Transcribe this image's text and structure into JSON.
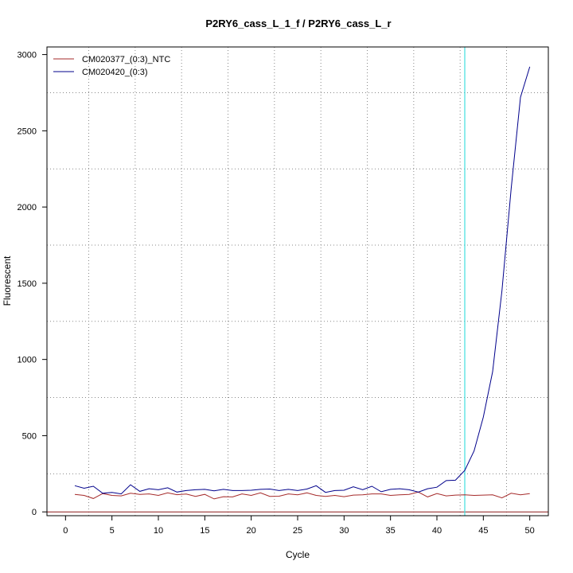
{
  "chart_data": {
    "type": "line",
    "title": "P2RY6_cass_L_1_f / P2RY6_cass_L_r",
    "xlabel": "Cycle",
    "ylabel": "Fluorescent",
    "xlim": [
      -2,
      52
    ],
    "ylim": [
      -25,
      3050
    ],
    "x_ticks": [
      0,
      5,
      10,
      15,
      20,
      25,
      30,
      35,
      40,
      45,
      50
    ],
    "y_ticks": [
      0,
      500,
      1000,
      1500,
      2000,
      2500,
      3000
    ],
    "x_grid": [
      2.5,
      7.5,
      12.5,
      17.5,
      22.5,
      27.5,
      32.5,
      37.5,
      42.5,
      47.5
    ],
    "y_grid": [
      250,
      750,
      1250,
      1750,
      2250,
      2750
    ],
    "grid": true,
    "legend_position": "top-left",
    "threshold_cycle": 43,
    "threshold_color": "#40e0e0",
    "baseline_value": 0,
    "baseline_color": "#8b1a1a",
    "x": [
      1,
      2,
      3,
      4,
      5,
      6,
      7,
      8,
      9,
      10,
      11,
      12,
      13,
      14,
      15,
      16,
      17,
      18,
      19,
      20,
      21,
      22,
      23,
      24,
      25,
      26,
      27,
      28,
      29,
      30,
      31,
      32,
      33,
      34,
      35,
      36,
      37,
      38,
      39,
      40,
      41,
      42,
      43,
      44,
      45,
      46,
      47,
      48,
      49,
      50
    ],
    "series": [
      {
        "name": "CM020377_(0:3)_NTC",
        "color": "#a52a2a",
        "values": [
          115,
          108,
          88,
          120,
          108,
          105,
          122,
          115,
          118,
          108,
          125,
          113,
          117,
          102,
          115,
          85,
          100,
          98,
          118,
          108,
          125,
          102,
          103,
          118,
          112,
          125,
          108,
          102,
          108,
          100,
          110,
          112,
          118,
          118,
          108,
          112,
          115,
          130,
          98,
          120,
          105,
          110,
          112,
          108,
          110,
          112,
          92,
          122,
          112,
          120
        ]
      },
      {
        "name": "CM020420_(0:3)",
        "color": "#00008b",
        "values": [
          172,
          155,
          168,
          122,
          128,
          118,
          178,
          135,
          152,
          145,
          158,
          130,
          140,
          145,
          148,
          138,
          148,
          140,
          140,
          142,
          148,
          150,
          140,
          148,
          140,
          150,
          172,
          128,
          140,
          142,
          165,
          145,
          168,
          132,
          148,
          152,
          145,
          130,
          152,
          162,
          205,
          208,
          272,
          400,
          622,
          920,
          1450,
          2120,
          2720,
          2920
        ]
      }
    ]
  }
}
